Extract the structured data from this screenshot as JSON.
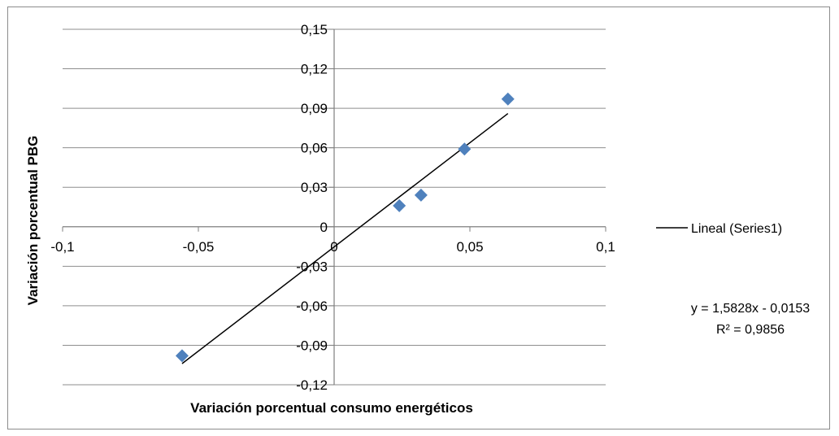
{
  "chart_data": {
    "type": "scatter",
    "title": "",
    "xlabel": "Variación porcentual consumo energéticos",
    "ylabel": "Variación porcentual PBG",
    "xlim": [
      -0.1,
      0.1
    ],
    "ylim": [
      -0.12,
      0.15
    ],
    "x_ticks": [
      -0.1,
      -0.05,
      0,
      0.05,
      0.1
    ],
    "x_tick_labels": [
      "-0,1",
      "-0,05",
      "0",
      "0,05",
      "0,1"
    ],
    "y_ticks": [
      0.15,
      0.12,
      0.09,
      0.06,
      0.03,
      0,
      -0.03,
      -0.06,
      -0.09,
      -0.12
    ],
    "y_tick_labels": [
      "0,15",
      "0,12",
      "0,09",
      "0,06",
      "0,03",
      "0",
      "-0,03",
      "-0,06",
      "-0,09",
      "-0,12"
    ],
    "grid": "horizontal",
    "legend_position": "right",
    "series": [
      {
        "marker": "diamond",
        "color": "#4f81bd",
        "points": [
          {
            "x": -0.056,
            "y": -0.098
          },
          {
            "x": 0.024,
            "y": 0.016
          },
          {
            "x": 0.032,
            "y": 0.024
          },
          {
            "x": 0.048,
            "y": 0.059
          },
          {
            "x": 0.064,
            "y": 0.097
          }
        ]
      }
    ],
    "trendline": {
      "type": "linear",
      "legend_label": "Lineal (Series1)",
      "slope": 1.5828,
      "intercept": -0.0153,
      "x_range": [
        -0.056,
        0.064
      ],
      "color": "#000000",
      "equation": "y = 1,5828x - 0,0153",
      "r_squared": "R² = 0,9856"
    }
  }
}
